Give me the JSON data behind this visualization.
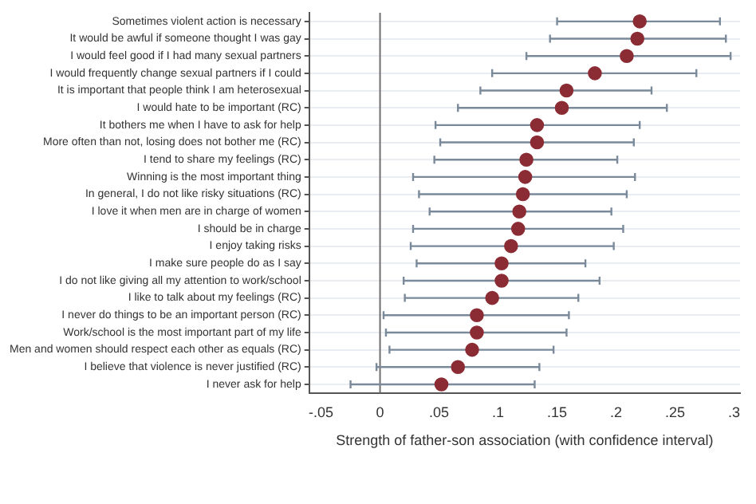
{
  "chart_data": {
    "type": "scatter",
    "orientation": "horizontal",
    "xlabel": "Strength of father-son association (with confidence interval)",
    "categories": [
      "Sometimes violent action is necessary",
      "It would be awful if someone thought I was gay",
      "I would feel good if I had many sexual partners",
      "I would frequently change sexual partners if I could",
      "It is important that people think I am heterosexual",
      "I would hate to be important (RC)",
      "It bothers me when I have to ask for help",
      "More often than not, losing does not bother me (RC)",
      "I tend to share my feelings (RC)",
      "Winning is the most important thing",
      "In general, I do not like risky situations (RC)",
      "I love it when men are in charge of women",
      "I should be in charge",
      "I enjoy taking risks",
      "I make sure people do as I say",
      "I do not like giving all my attention to work/school",
      "I like to talk about my feelings (RC)",
      "I never do things to be an important person (RC)",
      "Work/school is the most important part of my life",
      "Men and women should respect each other as equals (RC)",
      "I believe that violence is never justified (RC)",
      "I never ask for help"
    ],
    "values": [
      0.22,
      0.218,
      0.209,
      0.182,
      0.158,
      0.154,
      0.133,
      0.133,
      0.124,
      0.123,
      0.121,
      0.118,
      0.117,
      0.111,
      0.103,
      0.103,
      0.095,
      0.082,
      0.082,
      0.078,
      0.066,
      0.052
    ],
    "errors": [
      [
        0.15,
        0.288
      ],
      [
        0.144,
        0.293
      ],
      [
        0.124,
        0.297
      ],
      [
        0.095,
        0.268
      ],
      [
        0.085,
        0.23
      ],
      [
        0.066,
        0.243
      ],
      [
        0.047,
        0.22
      ],
      [
        0.051,
        0.215
      ],
      [
        0.046,
        0.201
      ],
      [
        0.028,
        0.216
      ],
      [
        0.033,
        0.209
      ],
      [
        0.042,
        0.196
      ],
      [
        0.028,
        0.206
      ],
      [
        0.026,
        0.198
      ],
      [
        0.031,
        0.174
      ],
      [
        0.02,
        0.186
      ],
      [
        0.021,
        0.168
      ],
      [
        0.003,
        0.16
      ],
      [
        0.005,
        0.158
      ],
      [
        0.008,
        0.147
      ],
      [
        -0.003,
        0.135
      ],
      [
        -0.025,
        0.131
      ]
    ],
    "color": "#8b2c35",
    "xlim": [
      -0.06,
      0.305
    ],
    "xticks": [
      {
        "value": -0.05,
        "label": "-.05"
      },
      0,
      {
        "value": 0.05,
        "label": ".05"
      },
      {
        "value": 0.1,
        "label": ".1"
      },
      {
        "value": 0.15,
        "label": ".15"
      },
      {
        "value": 0.2,
        "label": ".2"
      },
      {
        "value": 0.25,
        "label": ".25"
      },
      {
        "value": 0.3,
        "label": ".3"
      }
    ],
    "ref_lines": [
      {
        "axis": "x",
        "value": 0,
        "color": "#6e6e6e"
      }
    ],
    "grid": "y",
    "marker": "circle"
  }
}
